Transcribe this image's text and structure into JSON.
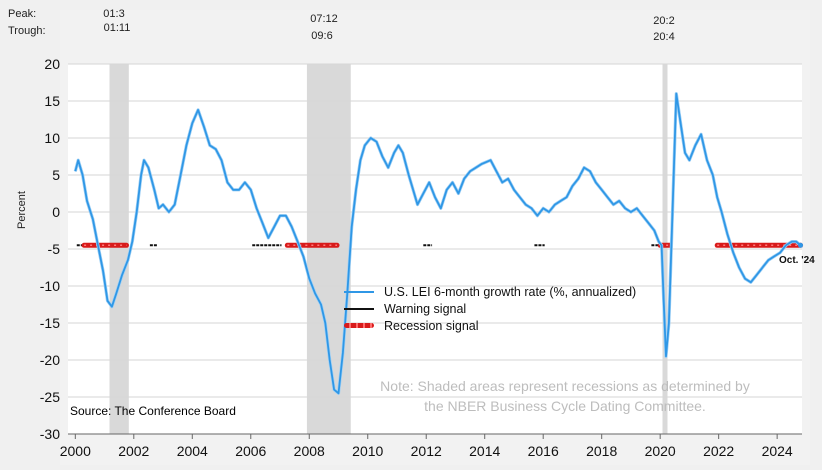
{
  "peak_trough": {
    "peak_label": "Peak:",
    "trough_label": "Trough:",
    "peaks": [
      "01:3",
      "07:12",
      "20:2"
    ],
    "troughs": [
      "01:11",
      "09:6",
      "20:4"
    ]
  },
  "source": "Source: The Conference Board",
  "note_line1": "Note: Shaded areas represent recessions as determined by",
  "note_line2": "the NBER Business Cycle Dating Committee.",
  "last_point_label": "Oct. '24",
  "colors": {
    "lei_line": "#2f97e6",
    "warning": "#111111",
    "recession": "#d81b1b",
    "recession_shade": "#d9d9d9",
    "plot_bg": "#ffffff"
  },
  "chart_data": {
    "type": "line",
    "title": "",
    "xlabel": "",
    "ylabel": "Percent",
    "xlim": [
      1999.75,
      2024.85
    ],
    "ylim": [
      -30,
      20
    ],
    "yticks": [
      -30,
      -25,
      -20,
      -15,
      -10,
      -5,
      0,
      5,
      10,
      15,
      20
    ],
    "xticks": [
      2000,
      2002,
      2004,
      2006,
      2008,
      2010,
      2012,
      2014,
      2016,
      2018,
      2020,
      2022,
      2024
    ],
    "grid": "horizontal",
    "legend": [
      "U.S. LEI 6-month growth rate (%, annualized)",
      "Warning signal",
      "Recession signal"
    ],
    "recessions": [
      {
        "start": 2001.17,
        "end": 2001.83
      },
      {
        "start": 2007.92,
        "end": 2009.42
      },
      {
        "start": 2020.08,
        "end": 2020.25
      }
    ],
    "series": [
      {
        "name": "U.S. LEI 6-month growth rate (%, annualized)",
        "points": [
          [
            2000.0,
            5.5
          ],
          [
            2000.1,
            7.0
          ],
          [
            2000.25,
            5.0
          ],
          [
            2000.4,
            1.5
          ],
          [
            2000.6,
            -1.0
          ],
          [
            2000.8,
            -5.0
          ],
          [
            2000.95,
            -8.0
          ],
          [
            2001.1,
            -12.0
          ],
          [
            2001.25,
            -12.8
          ],
          [
            2001.4,
            -11.0
          ],
          [
            2001.6,
            -8.5
          ],
          [
            2001.8,
            -6.5
          ],
          [
            2001.95,
            -4.0
          ],
          [
            2002.1,
            0.0
          ],
          [
            2002.25,
            5.0
          ],
          [
            2002.35,
            7.0
          ],
          [
            2002.5,
            6.0
          ],
          [
            2002.7,
            3.0
          ],
          [
            2002.85,
            0.5
          ],
          [
            2003.0,
            1.0
          ],
          [
            2003.2,
            0.0
          ],
          [
            2003.4,
            1.0
          ],
          [
            2003.6,
            5.0
          ],
          [
            2003.8,
            9.0
          ],
          [
            2004.0,
            12.0
          ],
          [
            2004.2,
            13.8
          ],
          [
            2004.4,
            11.5
          ],
          [
            2004.6,
            9.0
          ],
          [
            2004.8,
            8.5
          ],
          [
            2005.0,
            7.0
          ],
          [
            2005.2,
            4.0
          ],
          [
            2005.4,
            3.0
          ],
          [
            2005.6,
            3.0
          ],
          [
            2005.8,
            4.0
          ],
          [
            2006.0,
            3.0
          ],
          [
            2006.2,
            0.5
          ],
          [
            2006.4,
            -1.5
          ],
          [
            2006.6,
            -3.5
          ],
          [
            2006.8,
            -2.0
          ],
          [
            2007.0,
            -0.5
          ],
          [
            2007.2,
            -0.5
          ],
          [
            2007.4,
            -2.0
          ],
          [
            2007.6,
            -4.0
          ],
          [
            2007.8,
            -6.0
          ],
          [
            2008.0,
            -9.0
          ],
          [
            2008.2,
            -11.0
          ],
          [
            2008.4,
            -12.5
          ],
          [
            2008.55,
            -15.0
          ],
          [
            2008.7,
            -20.0
          ],
          [
            2008.85,
            -24.0
          ],
          [
            2009.0,
            -24.5
          ],
          [
            2009.15,
            -19.0
          ],
          [
            2009.3,
            -11.0
          ],
          [
            2009.45,
            -2.0
          ],
          [
            2009.6,
            3.0
          ],
          [
            2009.75,
            7.0
          ],
          [
            2009.9,
            9.0
          ],
          [
            2010.1,
            10.0
          ],
          [
            2010.3,
            9.5
          ],
          [
            2010.5,
            7.5
          ],
          [
            2010.7,
            6.0
          ],
          [
            2010.9,
            8.0
          ],
          [
            2011.05,
            9.0
          ],
          [
            2011.2,
            8.0
          ],
          [
            2011.4,
            5.0
          ],
          [
            2011.55,
            3.0
          ],
          [
            2011.7,
            1.0
          ],
          [
            2011.9,
            2.5
          ],
          [
            2012.1,
            4.0
          ],
          [
            2012.3,
            2.0
          ],
          [
            2012.5,
            0.5
          ],
          [
            2012.7,
            3.0
          ],
          [
            2012.9,
            4.0
          ],
          [
            2013.1,
            2.5
          ],
          [
            2013.3,
            4.5
          ],
          [
            2013.5,
            5.5
          ],
          [
            2013.7,
            6.0
          ],
          [
            2013.9,
            6.5
          ],
          [
            2014.2,
            7.0
          ],
          [
            2014.4,
            5.5
          ],
          [
            2014.6,
            4.0
          ],
          [
            2014.8,
            4.5
          ],
          [
            2015.0,
            3.0
          ],
          [
            2015.2,
            2.0
          ],
          [
            2015.4,
            1.0
          ],
          [
            2015.6,
            0.5
          ],
          [
            2015.8,
            -0.5
          ],
          [
            2016.0,
            0.5
          ],
          [
            2016.2,
            0.0
          ],
          [
            2016.4,
            1.0
          ],
          [
            2016.6,
            1.5
          ],
          [
            2016.8,
            2.0
          ],
          [
            2017.0,
            3.5
          ],
          [
            2017.2,
            4.5
          ],
          [
            2017.4,
            6.0
          ],
          [
            2017.6,
            5.5
          ],
          [
            2017.8,
            4.0
          ],
          [
            2018.0,
            3.0
          ],
          [
            2018.2,
            2.0
          ],
          [
            2018.4,
            1.0
          ],
          [
            2018.6,
            1.5
          ],
          [
            2018.8,
            0.5
          ],
          [
            2019.0,
            0.0
          ],
          [
            2019.2,
            0.5
          ],
          [
            2019.4,
            -0.5
          ],
          [
            2019.6,
            -1.5
          ],
          [
            2019.8,
            -2.5
          ],
          [
            2019.95,
            -4.0
          ],
          [
            2020.05,
            -4.5
          ],
          [
            2020.12,
            -12.0
          ],
          [
            2020.2,
            -19.5
          ],
          [
            2020.3,
            -15.0
          ],
          [
            2020.42,
            0.0
          ],
          [
            2020.55,
            16.0
          ],
          [
            2020.7,
            12.0
          ],
          [
            2020.85,
            8.0
          ],
          [
            2021.0,
            7.0
          ],
          [
            2021.2,
            9.0
          ],
          [
            2021.4,
            10.5
          ],
          [
            2021.6,
            7.0
          ],
          [
            2021.8,
            5.0
          ],
          [
            2021.95,
            2.0
          ],
          [
            2022.1,
            0.0
          ],
          [
            2022.3,
            -3.0
          ],
          [
            2022.5,
            -5.5
          ],
          [
            2022.7,
            -7.5
          ],
          [
            2022.9,
            -9.0
          ],
          [
            2023.1,
            -9.5
          ],
          [
            2023.3,
            -8.5
          ],
          [
            2023.5,
            -7.5
          ],
          [
            2023.7,
            -6.5
          ],
          [
            2023.9,
            -6.0
          ],
          [
            2024.1,
            -5.5
          ],
          [
            2024.3,
            -4.5
          ],
          [
            2024.5,
            -4.0
          ],
          [
            2024.65,
            -4.0
          ],
          [
            2024.8,
            -4.5
          ]
        ]
      }
    ],
    "signals": {
      "level": -4.5,
      "warning": [
        [
          2000.05,
          2000.3
        ],
        [
          2002.55,
          2002.8
        ],
        [
          2006.05,
          2007.05
        ],
        [
          2011.9,
          2012.2
        ],
        [
          2015.7,
          2016.05
        ],
        [
          2019.7,
          2020.0
        ]
      ],
      "recession": [
        [
          2000.3,
          2001.75
        ],
        [
          2007.25,
          2008.95
        ],
        [
          2020.0,
          2020.35
        ],
        [
          2021.95,
          2024.8
        ]
      ]
    }
  }
}
